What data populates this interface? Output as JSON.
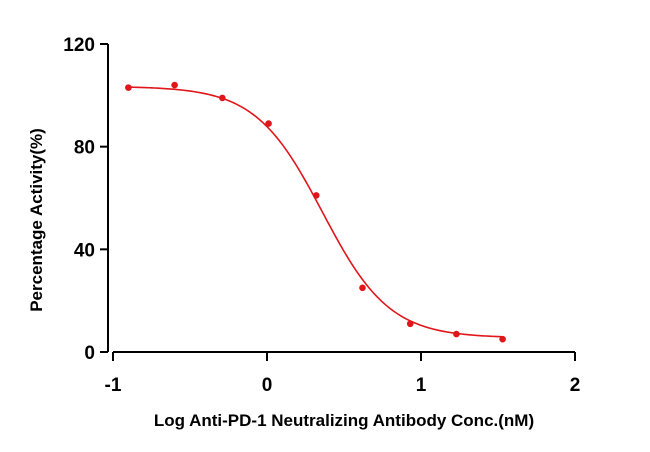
{
  "chart_data": {
    "type": "scatter",
    "title": "",
    "xlabel": "Log Anti-PD-1 Neutralizing Antibody Conc.(nM)",
    "ylabel": "Percentage Activity(%)",
    "xlim": [
      -1,
      2
    ],
    "ylim": [
      0,
      120
    ],
    "x_ticks": [
      "-1",
      "0",
      "1",
      "2"
    ],
    "y_ticks": [
      "0",
      "40",
      "80",
      "120"
    ],
    "grid": false,
    "series": [
      {
        "color": "#e0161a",
        "points": [
          {
            "x": -0.9,
            "y": 103
          },
          {
            "x": -0.6,
            "y": 104
          },
          {
            "x": -0.29,
            "y": 99
          },
          {
            "x": 0.01,
            "y": 89
          },
          {
            "x": 0.32,
            "y": 61
          },
          {
            "x": 0.62,
            "y": 25
          },
          {
            "x": 0.93,
            "y": 11
          },
          {
            "x": 1.23,
            "y": 7
          },
          {
            "x": 1.53,
            "y": 5
          }
        ],
        "fit": {
          "model": "4PL",
          "top": 103.5,
          "bottom": 5.5,
          "log_ic50": 0.36,
          "hill_slope": -2.0
        }
      }
    ]
  }
}
